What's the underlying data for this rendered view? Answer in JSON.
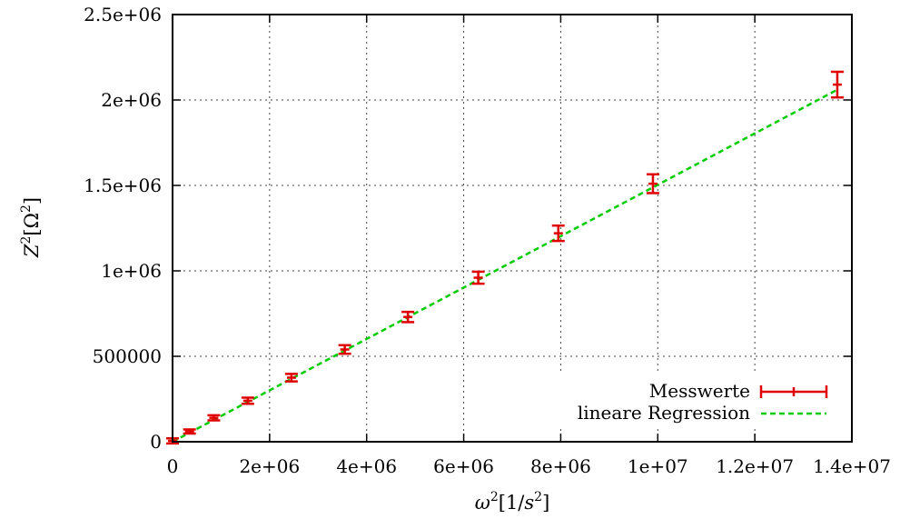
{
  "chart_data": {
    "type": "scatter",
    "xlabel_base": "ω",
    "xlabel_sup": "2",
    "xlabel_unit_open": "[1/",
    "xlabel_unit_var": "s",
    "xlabel_unit_sup": "2",
    "xlabel_unit_close": "]",
    "ylabel_base": "Z",
    "ylabel_sup": "2",
    "ylabel_unit_open": "[Ω",
    "ylabel_unit_sup": "2",
    "ylabel_unit_close": "]",
    "xlim": [
      0,
      14000000
    ],
    "ylim": [
      0,
      2500000
    ],
    "x_ticks": [
      {
        "value": 0,
        "label": "0"
      },
      {
        "value": 2000000,
        "label": "2e+06"
      },
      {
        "value": 4000000,
        "label": "4e+06"
      },
      {
        "value": 6000000,
        "label": "6e+06"
      },
      {
        "value": 8000000,
        "label": "8e+06"
      },
      {
        "value": 10000000,
        "label": "1e+07"
      },
      {
        "value": 12000000,
        "label": "1.2e+07"
      },
      {
        "value": 14000000,
        "label": "1.4e+07"
      }
    ],
    "y_ticks": [
      {
        "value": 0,
        "label": "0"
      },
      {
        "value": 500000,
        "label": "500000"
      },
      {
        "value": 1000000,
        "label": "1e+06"
      },
      {
        "value": 1500000,
        "label": "1.5e+06"
      },
      {
        "value": 2000000,
        "label": "2e+06"
      },
      {
        "value": 2500000,
        "label": "2.5e+06"
      }
    ],
    "grid": true,
    "legend_position": "bottom-right",
    "series": [
      {
        "name": "Messwerte",
        "kind": "errorbars",
        "color": "#e00000",
        "points": [
          {
            "x": 0,
            "y": 5000,
            "err": 15000
          },
          {
            "x": 350000,
            "y": 60000,
            "err": 12000
          },
          {
            "x": 850000,
            "y": 140000,
            "err": 15000
          },
          {
            "x": 1550000,
            "y": 240000,
            "err": 18000
          },
          {
            "x": 2450000,
            "y": 375000,
            "err": 22000
          },
          {
            "x": 3550000,
            "y": 540000,
            "err": 25000
          },
          {
            "x": 4850000,
            "y": 730000,
            "err": 30000
          },
          {
            "x": 6300000,
            "y": 960000,
            "err": 35000
          },
          {
            "x": 7950000,
            "y": 1220000,
            "err": 45000
          },
          {
            "x": 9900000,
            "y": 1510000,
            "err": 55000
          },
          {
            "x": 13700000,
            "y": 2090000,
            "err": 75000
          }
        ]
      },
      {
        "name": "lineare Regression",
        "kind": "line",
        "color": "#00cc00",
        "line": {
          "x0": 0,
          "y0": 0,
          "x1": 13700000,
          "y1": 2060000
        }
      }
    ]
  }
}
